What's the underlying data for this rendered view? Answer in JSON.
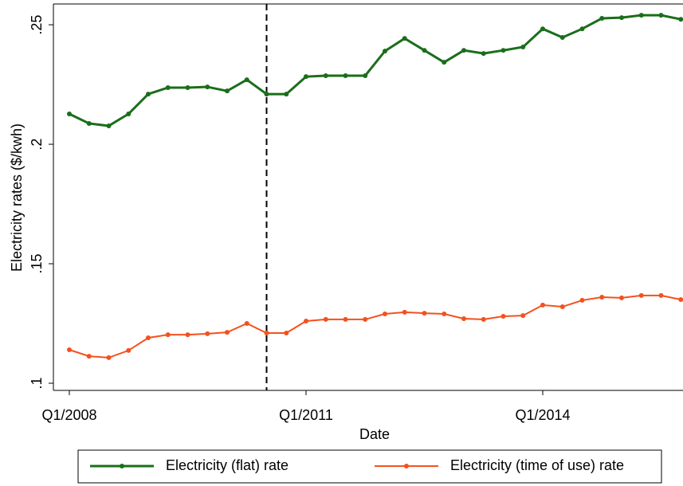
{
  "chart_data": {
    "type": "line",
    "x_label": "Date",
    "y_label": "Electricity rates ($/kwh)",
    "categories": [
      "Q1/2008",
      null,
      null,
      null,
      null,
      null,
      null,
      null,
      null,
      null,
      null,
      null,
      "Q1/2011",
      null,
      null,
      null,
      null,
      null,
      null,
      null,
      null,
      null,
      null,
      null,
      "Q1/2014",
      null,
      null,
      null,
      null,
      null,
      null,
      null
    ],
    "reference_line": 10,
    "series": [
      {
        "name": "Electricity (flat) rate",
        "color": "#1a6e1a",
        "values": [
          0.2127,
          0.2087,
          0.2077,
          0.2127,
          0.221,
          0.2237,
          0.2237,
          0.224,
          0.2223,
          0.227,
          0.221,
          0.221,
          0.2283,
          0.2287,
          0.2287,
          0.2287,
          0.239,
          0.2443,
          0.2393,
          0.2343,
          0.2393,
          0.238,
          0.2393,
          0.2407,
          0.2483,
          0.2447,
          0.2483,
          0.2527,
          0.253,
          0.254,
          0.254,
          0.2523
        ]
      },
      {
        "name": "Electricity (time of use) rate",
        "color": "#f4511e",
        "values": [
          0.114,
          0.1113,
          0.1107,
          0.1137,
          0.119,
          0.1203,
          0.1203,
          0.1207,
          0.1213,
          0.125,
          0.121,
          0.121,
          0.126,
          0.1267,
          0.1267,
          0.1267,
          0.129,
          0.1297,
          0.1293,
          0.129,
          0.127,
          0.1267,
          0.128,
          0.1283,
          0.1327,
          0.132,
          0.1347,
          0.136,
          0.1357,
          0.1367,
          0.1367,
          0.135
        ]
      }
    ],
    "ylim": [
      0.097,
      0.2587
    ],
    "yticks": [
      {
        "value": 0.1,
        "label": ".1"
      },
      {
        "value": 0.15,
        "label": ".15"
      },
      {
        "value": 0.2,
        "label": ".2"
      },
      {
        "value": 0.25,
        "label": ".25"
      }
    ],
    "legend": "bottom"
  }
}
